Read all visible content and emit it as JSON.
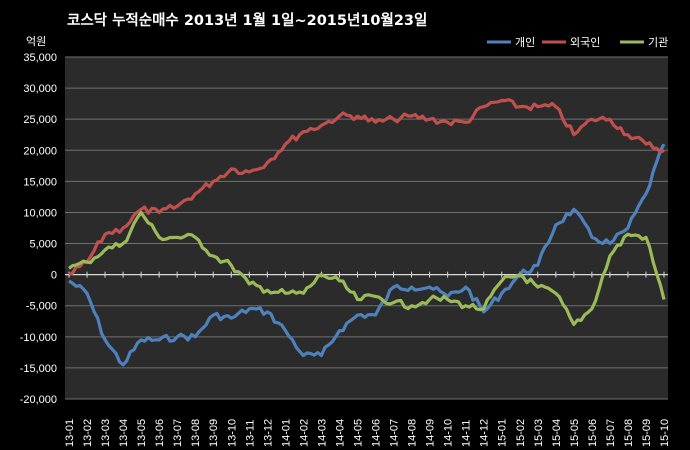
{
  "chart_data": {
    "type": "line",
    "title": "코스닥  누적순매수 2013년 1월 1일~2015년10월23일",
    "ylabel": "억원",
    "ylim": [
      -20000,
      35000
    ],
    "yticks": [
      "35,000",
      "30,000",
      "25,000",
      "20,000",
      "15,000",
      "10,000",
      "5,000",
      "0",
      "-5,000",
      "-10,000",
      "-15,000",
      "-20,000"
    ],
    "ytick_values": [
      35000,
      30000,
      25000,
      20000,
      15000,
      10000,
      5000,
      0,
      -5000,
      -10000,
      -15000,
      -20000
    ],
    "categories": [
      "13-01",
      "13-02",
      "13-03",
      "13-04",
      "13-05",
      "13-06",
      "13-07",
      "13-08",
      "13-09",
      "13-10",
      "13-11",
      "13-12",
      "14-01",
      "14-02",
      "14-03",
      "14-04",
      "14-05",
      "14-06",
      "14-07",
      "14-08",
      "14-09",
      "14-10",
      "14-11",
      "14-12",
      "15-01",
      "15-02",
      "15-03",
      "15-04",
      "15-05",
      "15-06",
      "15-07",
      "15-08",
      "15-09",
      "15-10"
    ],
    "grid": "horizontal",
    "legend_position": "top-right",
    "background": "#2b2b2b",
    "series": [
      {
        "name": "개인",
        "color": "#4f81bd",
        "values": [
          -1000,
          -3000,
          -10500,
          -14500,
          -10500,
          -10500,
          -10000,
          -10000,
          -6500,
          -7000,
          -5500,
          -6000,
          -9000,
          -13000,
          -13000,
          -9000,
          -6500,
          -6500,
          -2000,
          -2000,
          -2000,
          -3500,
          -2000,
          -6000,
          -3000,
          0,
          1500,
          8000,
          10500,
          6000,
          5000,
          7500,
          13000,
          21000
        ]
      },
      {
        "name": "외국인",
        "color": "#c0504d",
        "values": [
          0,
          2000,
          6500,
          7500,
          10500,
          10000,
          11000,
          13000,
          15000,
          17000,
          16500,
          18000,
          21000,
          23000,
          24000,
          25500,
          25500,
          24500,
          25000,
          25500,
          25000,
          24500,
          24500,
          27000,
          28000,
          27000,
          27000,
          27000,
          22500,
          25000,
          25000,
          22500,
          21000,
          20000
        ]
      },
      {
        "name": "기관",
        "color": "#9bbb59",
        "values": [
          1000,
          2000,
          4000,
          5000,
          10000,
          6000,
          6000,
          6000,
          3000,
          1500,
          -1500,
          -2500,
          -3000,
          -3000,
          0,
          -1000,
          -4000,
          -3500,
          -4500,
          -5000,
          -4000,
          -4000,
          -5000,
          -5500,
          -1000,
          0,
          -2000,
          -3000,
          -8000,
          -5500,
          3000,
          6500,
          6000,
          -4000
        ]
      }
    ]
  }
}
